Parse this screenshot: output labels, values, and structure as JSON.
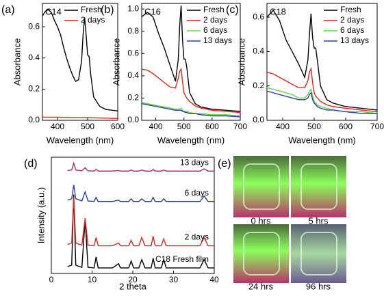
{
  "chart_data": [
    {
      "type": "line",
      "panel_label": "(a)",
      "annotation": "C14",
      "x_label": "Wavelength (nm)",
      "y_label": "Absorbance",
      "xlim": [
        350,
        600
      ],
      "xticks": [
        400,
        500,
        600
      ],
      "ylim": [
        0,
        0.75
      ],
      "yticks": [
        {
          "value": 0,
          "label": "0.0"
        },
        0.2,
        0.4,
        0.6
      ],
      "legend": "upper right",
      "x": [
        350,
        360,
        370,
        380,
        390,
        400,
        410,
        420,
        430,
        440,
        450,
        460,
        470,
        480,
        485,
        490,
        495,
        500,
        505,
        510,
        520,
        540,
        560,
        580,
        600
      ],
      "series": [
        {
          "name": "Fresh",
          "color": "#000000",
          "values": [
            0.67,
            0.7,
            0.71,
            0.69,
            0.64,
            0.6,
            0.55,
            0.47,
            0.4,
            0.34,
            0.29,
            0.25,
            0.26,
            0.38,
            0.55,
            0.66,
            0.55,
            0.42,
            0.41,
            0.3,
            0.15,
            0.09,
            0.07,
            0.065,
            0.06
          ]
        },
        {
          "name": "2 days",
          "color": "#e8201c",
          "values": [
            0.02,
            0.02,
            0.02,
            0.02,
            0.02,
            0.02,
            0.02,
            0.019,
            0.019,
            0.018,
            0.018,
            0.018,
            0.018,
            0.018,
            0.018,
            0.018,
            0.017,
            0.017,
            0.017,
            0.016,
            0.016,
            0.015,
            0.014,
            0.013,
            0.012
          ]
        }
      ]
    },
    {
      "type": "line",
      "panel_label": "(b)",
      "annotation": "C16",
      "x_label": "Wavelength (nm)",
      "y_label": "Absorbance",
      "xlim": [
        350,
        700
      ],
      "xticks": [
        400,
        500,
        600,
        700
      ],
      "ylim": [
        0,
        1.05
      ],
      "yticks": [
        {
          "value": 0,
          "label": "0.0"
        },
        0.2,
        0.4,
        0.6,
        0.8,
        {
          "value": 1,
          "label": "1.0"
        }
      ],
      "legend": "upper right",
      "x": [
        350,
        370,
        390,
        410,
        430,
        450,
        470,
        480,
        485,
        490,
        495,
        500,
        505,
        510,
        520,
        540,
        560,
        600,
        650,
        700
      ],
      "series": [
        {
          "name": "Fresh",
          "color": "#000000",
          "values": [
            0.93,
            0.97,
            0.93,
            0.78,
            0.65,
            0.5,
            0.35,
            0.55,
            0.85,
            1.03,
            0.72,
            0.55,
            0.55,
            0.48,
            0.25,
            0.15,
            0.12,
            0.1,
            0.09,
            0.08
          ]
        },
        {
          "name": "2 days",
          "color": "#e8201c",
          "values": [
            0.46,
            0.45,
            0.42,
            0.38,
            0.34,
            0.3,
            0.29,
            0.38,
            0.44,
            0.46,
            0.35,
            0.25,
            0.22,
            0.2,
            0.17,
            0.13,
            0.11,
            0.09,
            0.08,
            0.07
          ]
        },
        {
          "name": "6 days",
          "color": "#5fd34a",
          "values": [
            0.16,
            0.15,
            0.14,
            0.13,
            0.12,
            0.11,
            0.1,
            0.1,
            0.1,
            0.11,
            0.09,
            0.08,
            0.08,
            0.08,
            0.07,
            0.06,
            0.06,
            0.05,
            0.05,
            0.04
          ]
        },
        {
          "name": "13 days",
          "color": "#2a3f9e",
          "values": [
            0.15,
            0.14,
            0.13,
            0.12,
            0.11,
            0.1,
            0.09,
            0.09,
            0.09,
            0.09,
            0.08,
            0.08,
            0.07,
            0.07,
            0.06,
            0.06,
            0.05,
            0.04,
            0.04,
            0.03
          ]
        }
      ]
    },
    {
      "type": "line",
      "panel_label": "(c)",
      "annotation": "C18",
      "x_label": "Wavelength (nm)",
      "y_label": "Absorbance",
      "xlim": [
        350,
        700
      ],
      "xticks": [
        400,
        500,
        600,
        700
      ],
      "ylim": [
        0,
        0.68
      ],
      "yticks": [
        {
          "value": 0,
          "label": "0.0"
        },
        0.2,
        0.4,
        0.6
      ],
      "legend": "upper right",
      "x": [
        350,
        370,
        390,
        410,
        430,
        450,
        470,
        480,
        485,
        490,
        495,
        500,
        505,
        510,
        520,
        540,
        560,
        600,
        650,
        700
      ],
      "series": [
        {
          "name": "Fresh",
          "color": "#000000",
          "values": [
            0.6,
            0.64,
            0.58,
            0.47,
            0.4,
            0.33,
            0.25,
            0.35,
            0.5,
            0.62,
            0.48,
            0.42,
            0.42,
            0.35,
            0.2,
            0.12,
            0.1,
            0.08,
            0.07,
            0.06
          ]
        },
        {
          "name": "2 days",
          "color": "#e8201c",
          "values": [
            0.28,
            0.27,
            0.25,
            0.23,
            0.21,
            0.19,
            0.19,
            0.23,
            0.28,
            0.3,
            0.22,
            0.16,
            0.14,
            0.13,
            0.11,
            0.09,
            0.08,
            0.07,
            0.06,
            0.05
          ]
        },
        {
          "name": "6 days",
          "color": "#5fd34a",
          "values": [
            0.19,
            0.18,
            0.17,
            0.16,
            0.15,
            0.13,
            0.13,
            0.15,
            0.17,
            0.18,
            0.14,
            0.11,
            0.1,
            0.09,
            0.08,
            0.07,
            0.06,
            0.05,
            0.05,
            0.04
          ]
        },
        {
          "name": "13 days",
          "color": "#2a3f9e",
          "values": [
            0.17,
            0.16,
            0.15,
            0.14,
            0.13,
            0.12,
            0.12,
            0.13,
            0.15,
            0.16,
            0.12,
            0.1,
            0.09,
            0.08,
            0.07,
            0.06,
            0.06,
            0.05,
            0.04,
            0.04
          ]
        }
      ]
    },
    {
      "type": "line",
      "panel_label": "(d)",
      "x_label": "2 theta",
      "y_label": "Intensity (a.u.)",
      "xlim": [
        0,
        40
      ],
      "xticks": [
        0,
        10,
        20,
        30,
        40
      ],
      "ylim": [
        0,
        4.2
      ],
      "legend": "inline",
      "x": [
        4,
        5,
        5.5,
        6,
        7.5,
        8.3,
        9,
        10.5,
        11,
        11.5,
        15,
        16.5,
        17,
        19,
        19.6,
        20.2,
        21.5,
        22.2,
        23,
        24.5,
        25,
        25.5,
        27,
        27.6,
        28.2,
        30,
        33,
        36.5,
        37.5,
        38.5,
        40
      ],
      "series": [
        {
          "name": "C18 Fresh film",
          "color": "#000000",
          "values": [
            0.25,
            0.3,
            2.85,
            0.3,
            0.22,
            1.95,
            0.22,
            0.2,
            0.6,
            0.2,
            0.2,
            0.35,
            0.2,
            0.2,
            0.45,
            0.2,
            0.2,
            0.5,
            0.2,
            0.2,
            0.55,
            0.2,
            0.2,
            0.5,
            0.2,
            0.2,
            0.2,
            0.2,
            0.5,
            0.2,
            0.2
          ]
        },
        {
          "name": "2 days",
          "color": "#e8201c",
          "values": [
            1.05,
            1.1,
            2.75,
            1.1,
            1.02,
            2.0,
            1.02,
            1.0,
            1.3,
            1.0,
            1.0,
            1.1,
            1.0,
            1.0,
            1.2,
            1.0,
            1.0,
            1.3,
            1.0,
            1.0,
            1.35,
            1.0,
            1.0,
            1.25,
            1.0,
            1.0,
            1.0,
            1.0,
            1.3,
            1.0,
            1.0
          ]
        },
        {
          "name": "6 days",
          "color": "#2a3f9e",
          "values": [
            2.65,
            2.7,
            3.2,
            2.7,
            2.62,
            2.95,
            2.62,
            2.6,
            2.75,
            2.6,
            2.6,
            2.65,
            2.6,
            2.6,
            2.7,
            2.6,
            2.6,
            2.7,
            2.6,
            2.6,
            2.75,
            2.6,
            2.6,
            2.7,
            2.6,
            2.6,
            2.6,
            2.6,
            2.8,
            2.6,
            2.6
          ]
        },
        {
          "name": "13 days",
          "color": "#a0306e",
          "values": [
            3.72,
            3.74,
            3.98,
            3.74,
            3.71,
            3.82,
            3.71,
            3.7,
            3.76,
            3.7,
            3.7,
            3.72,
            3.7,
            3.7,
            3.74,
            3.7,
            3.7,
            3.74,
            3.7,
            3.7,
            3.76,
            3.7,
            3.7,
            3.74,
            3.7,
            3.7,
            3.7,
            3.7,
            3.78,
            3.7,
            3.7
          ]
        }
      ]
    }
  ],
  "panel_e": {
    "panel_label": "(e)",
    "labels": [
      "0 hrs",
      "5 hrs",
      "24 hrs",
      "96 hrs"
    ]
  }
}
